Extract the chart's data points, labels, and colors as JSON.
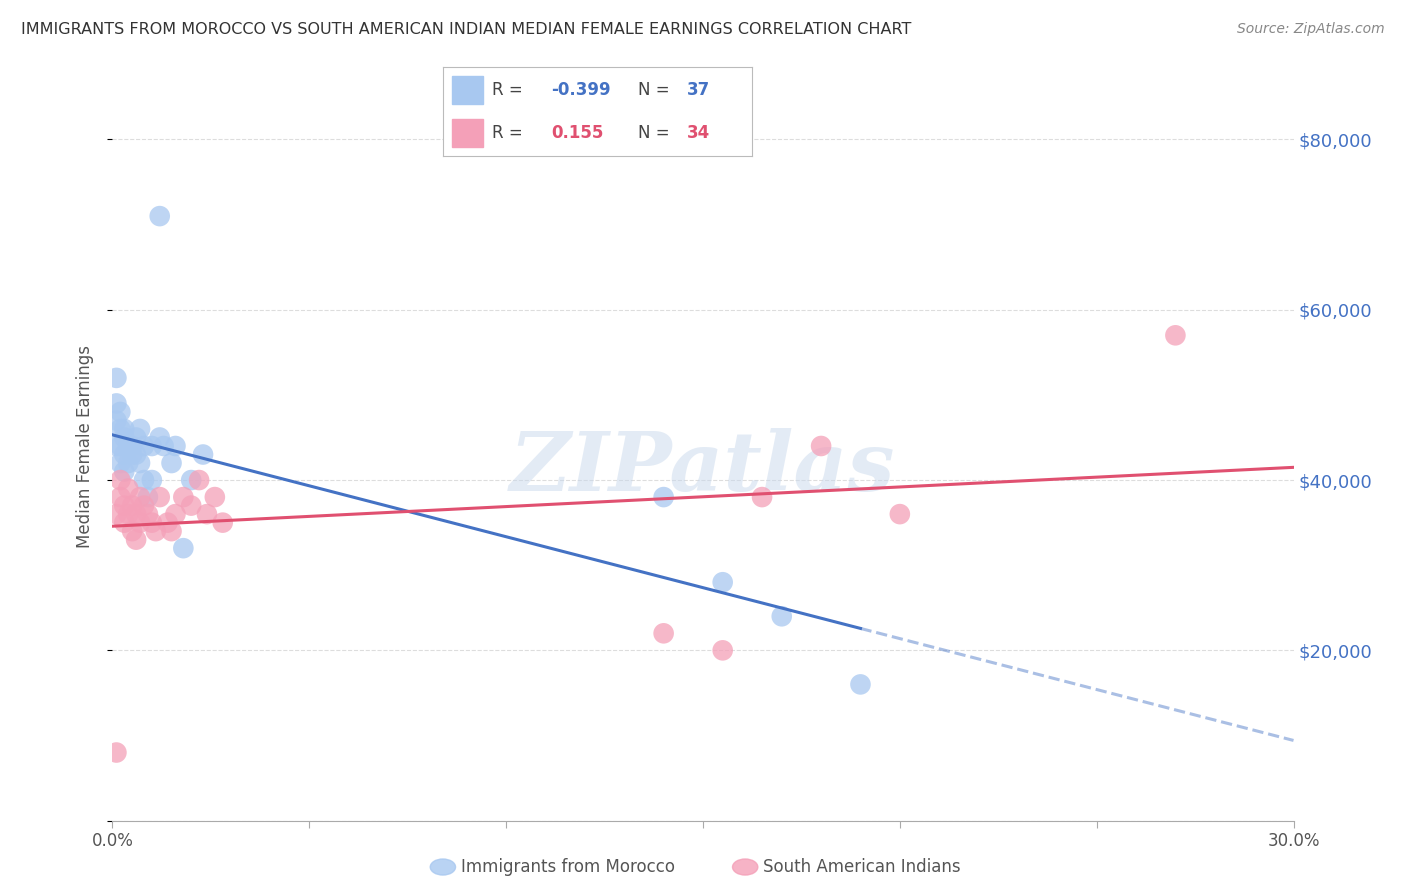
{
  "title": "IMMIGRANTS FROM MOROCCO VS SOUTH AMERICAN INDIAN MEDIAN FEMALE EARNINGS CORRELATION CHART",
  "source": "Source: ZipAtlas.com",
  "ylabel": "Median Female Earnings",
  "xlim": [
    0.0,
    0.3
  ],
  "ylim": [
    0,
    88000
  ],
  "yticks": [
    0,
    20000,
    40000,
    60000,
    80000
  ],
  "ytick_labels": [
    "",
    "$20,000",
    "$40,000",
    "$60,000",
    "$80,000"
  ],
  "xticks": [
    0.0,
    0.05,
    0.1,
    0.15,
    0.2,
    0.25,
    0.3
  ],
  "xtick_labels": [
    "0.0%",
    "",
    "",
    "",
    "",
    "",
    "30.0%"
  ],
  "watermark": "ZIPatlas",
  "legend_R1": "-0.399",
  "legend_N1": "37",
  "legend_R2": "0.155",
  "legend_N2": "34",
  "blue_color": "#A8C8F0",
  "pink_color": "#F4A0B8",
  "line_blue": "#4472C4",
  "line_pink": "#E05070",
  "background_color": "#FFFFFF",
  "grid_color": "#DDDDDD",
  "morocco_x": [
    0.001,
    0.012,
    0.001,
    0.001,
    0.001,
    0.002,
    0.002,
    0.002,
    0.002,
    0.003,
    0.003,
    0.003,
    0.003,
    0.004,
    0.004,
    0.005,
    0.005,
    0.006,
    0.006,
    0.007,
    0.007,
    0.008,
    0.008,
    0.009,
    0.01,
    0.01,
    0.012,
    0.013,
    0.015,
    0.016,
    0.018,
    0.02,
    0.023,
    0.14,
    0.17,
    0.19,
    0.155
  ],
  "morocco_y": [
    49000,
    71000,
    52000,
    47000,
    44000,
    46000,
    44000,
    42000,
    48000,
    45000,
    43000,
    41000,
    46000,
    44000,
    42000,
    43000,
    44000,
    43000,
    45000,
    46000,
    42000,
    44000,
    40000,
    38000,
    44000,
    40000,
    45000,
    44000,
    42000,
    44000,
    32000,
    40000,
    43000,
    38000,
    24000,
    16000,
    28000
  ],
  "sai_x": [
    0.001,
    0.001,
    0.002,
    0.002,
    0.003,
    0.003,
    0.004,
    0.004,
    0.005,
    0.005,
    0.006,
    0.006,
    0.007,
    0.007,
    0.008,
    0.009,
    0.01,
    0.011,
    0.012,
    0.014,
    0.015,
    0.016,
    0.018,
    0.02,
    0.022,
    0.024,
    0.026,
    0.028,
    0.14,
    0.155,
    0.165,
    0.18,
    0.2,
    0.27
  ],
  "sai_y": [
    8000,
    36000,
    38000,
    40000,
    35000,
    37000,
    36000,
    39000,
    37000,
    34000,
    36000,
    33000,
    38000,
    35000,
    37000,
    36000,
    35000,
    34000,
    38000,
    35000,
    34000,
    36000,
    38000,
    37000,
    40000,
    36000,
    38000,
    35000,
    22000,
    20000,
    38000,
    44000,
    36000,
    57000
  ]
}
